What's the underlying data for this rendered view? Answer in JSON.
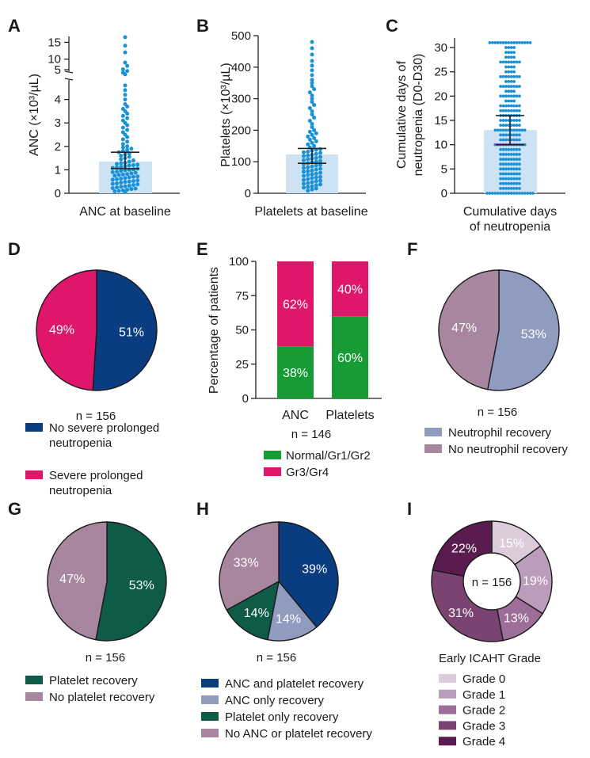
{
  "colors": {
    "dot": "#1b92d6",
    "bar_blue": "#cde3f4",
    "navy": "#0a3d80",
    "pink": "#e0166a",
    "green": "#179c35",
    "gray_blue": "#8f9cc0",
    "mauve": "#a8869f",
    "dark_green": "#0e5c48",
    "grade0": "#dccbdb",
    "grade1": "#bb9cba",
    "grade2": "#9c6e98",
    "grade3": "#7a4371",
    "grade4": "#5a1b4f"
  },
  "chart_data": [
    {
      "panel": "A",
      "type": "scatter",
      "title": "",
      "xlabel": "ANC at baseline",
      "ylabel": "ANC (×10³/µL)",
      "y_ticks": [
        "0",
        "1",
        "2",
        "3",
        "4",
        "5",
        "10",
        "15"
      ],
      "broken_axis": {
        "lower_range": [
          0,
          5
        ],
        "upper_range": [
          5,
          15
        ]
      },
      "bar_median": 1.35,
      "ci": [
        1.05,
        1.75
      ],
      "values": [
        0.05,
        0.08,
        0.1,
        0.12,
        0.15,
        0.18,
        0.2,
        0.22,
        0.25,
        0.28,
        0.3,
        0.32,
        0.35,
        0.38,
        0.4,
        0.42,
        0.45,
        0.48,
        0.5,
        0.52,
        0.55,
        0.58,
        0.6,
        0.62,
        0.65,
        0.68,
        0.7,
        0.72,
        0.75,
        0.78,
        0.8,
        0.82,
        0.85,
        0.88,
        0.9,
        0.92,
        0.95,
        0.98,
        1.0,
        1.02,
        1.05,
        1.08,
        1.1,
        1.12,
        1.15,
        1.18,
        1.2,
        1.22,
        1.25,
        1.28,
        1.3,
        1.35,
        1.4,
        1.45,
        1.5,
        1.55,
        1.6,
        1.65,
        1.7,
        1.75,
        1.8,
        1.85,
        1.9,
        1.95,
        2.0,
        2.1,
        2.2,
        2.3,
        2.4,
        2.5,
        2.6,
        2.7,
        2.8,
        2.9,
        3.0,
        3.1,
        3.2,
        3.3,
        3.4,
        3.5,
        3.6,
        3.7,
        3.8,
        4.0,
        4.2,
        4.4,
        4.6,
        5.5,
        6.0,
        6.5,
        7.0,
        8.0,
        9.0,
        12.0,
        14.0,
        16.5
      ]
    },
    {
      "panel": "B",
      "type": "scatter",
      "title": "",
      "xlabel": "Platelets at baseline",
      "ylabel": "Platelets (×10³/µL)",
      "ylim": [
        0,
        500
      ],
      "y_ticks": [
        "0",
        "100",
        "200",
        "300",
        "400",
        "500"
      ],
      "bar_median": 123,
      "ci": [
        95,
        142
      ],
      "values": [
        8,
        12,
        15,
        18,
        20,
        22,
        25,
        28,
        30,
        32,
        35,
        38,
        40,
        42,
        45,
        48,
        50,
        52,
        55,
        58,
        60,
        62,
        65,
        68,
        70,
        72,
        75,
        78,
        80,
        82,
        85,
        88,
        90,
        92,
        95,
        98,
        100,
        102,
        105,
        108,
        110,
        112,
        115,
        118,
        120,
        122,
        125,
        128,
        130,
        132,
        135,
        138,
        140,
        145,
        150,
        155,
        160,
        165,
        170,
        175,
        180,
        185,
        190,
        195,
        200,
        210,
        220,
        230,
        240,
        250,
        260,
        270,
        280,
        290,
        300,
        310,
        320,
        330,
        340,
        350,
        360,
        375,
        390,
        405,
        420,
        440,
        460,
        480
      ]
    },
    {
      "panel": "C",
      "type": "scatter",
      "title": "",
      "xlabel": "Cumulative days of neutropenia",
      "ylabel": "Cumulative days of neutropenia (D0-D30)",
      "ylim": [
        0,
        30
      ],
      "y_ticks": [
        "0",
        "5",
        "10",
        "15",
        "20",
        "25",
        "30"
      ],
      "bar_median": 13,
      "ci": [
        10,
        16
      ],
      "values": [
        0,
        0,
        0,
        0,
        0,
        0,
        1,
        1,
        2,
        2,
        3,
        3,
        4,
        4,
        5,
        5,
        6,
        6,
        7,
        7,
        8,
        8,
        9,
        9,
        10,
        10,
        10,
        11,
        11,
        12,
        12,
        13,
        13,
        13,
        14,
        14,
        15,
        15,
        16,
        16,
        17,
        17,
        18,
        18,
        19,
        20,
        20,
        21,
        22,
        22,
        23,
        24,
        24,
        25,
        26,
        27,
        27,
        28,
        29,
        30,
        31,
        31,
        31,
        31
      ]
    },
    {
      "panel": "D",
      "type": "pie",
      "n_label": "n = 156",
      "slices": [
        {
          "name": "No severe prolonged neutropenia",
          "value": 51,
          "label": "51%",
          "color": "#0a3d80"
        },
        {
          "name": "Severe prolonged neutropenia",
          "value": 49,
          "label": "49%",
          "color": "#e0166a"
        }
      ],
      "legend": [
        "No severe prolonged neutropenia",
        "Severe prolonged neutropenia"
      ]
    },
    {
      "panel": "E",
      "type": "bar",
      "stacked": true,
      "categories": [
        "ANC",
        "Platelets"
      ],
      "series": [
        {
          "name": "Normal/Gr1/Gr2",
          "values": [
            38,
            60
          ],
          "labels": [
            "38%",
            "60%"
          ],
          "color": "#179c35"
        },
        {
          "name": "Gr3/Gr4",
          "values": [
            62,
            40
          ],
          "labels": [
            "62%",
            "40%"
          ],
          "color": "#e0166a"
        }
      ],
      "ylabel": "Percentage of patients",
      "ylim": [
        0,
        100
      ],
      "y_ticks": [
        "0",
        "25",
        "50",
        "75",
        "100"
      ],
      "n_label": "n = 146",
      "legend": [
        "Normal/Gr1/Gr2",
        "Gr3/Gr4"
      ]
    },
    {
      "panel": "F",
      "type": "pie",
      "n_label": "n = 156",
      "slices": [
        {
          "name": "Neutrophil recovery",
          "value": 53,
          "label": "53%",
          "color": "#8f9cc0"
        },
        {
          "name": "No neutrophil recovery",
          "value": 47,
          "label": "47%",
          "color": "#a8869f"
        }
      ],
      "legend": [
        "Neutrophil recovery",
        "No neutrophil recovery"
      ]
    },
    {
      "panel": "G",
      "type": "pie",
      "n_label": "n = 156",
      "slices": [
        {
          "name": "Platelet recovery",
          "value": 53,
          "label": "53%",
          "color": "#0e5c48"
        },
        {
          "name": "No platelet recovery",
          "value": 47,
          "label": "47%",
          "color": "#a8869f"
        }
      ],
      "legend": [
        "Platelet recovery",
        "No platelet recovery"
      ]
    },
    {
      "panel": "H",
      "type": "pie",
      "n_label": "n = 156",
      "slices": [
        {
          "name": "ANC and platelet recovery",
          "value": 39,
          "label": "39%",
          "color": "#0a3d80"
        },
        {
          "name": "ANC only recovery",
          "value": 14,
          "label": "14%",
          "color": "#8f9cc0"
        },
        {
          "name": "Platelet only recovery",
          "value": 14,
          "label": "14%",
          "color": "#0e5c48"
        },
        {
          "name": "No ANC or platelet recovery",
          "value": 33,
          "label": "33%",
          "color": "#a8869f"
        }
      ],
      "legend": [
        "ANC and platelet recovery",
        "ANC only recovery",
        "Platelet only recovery",
        "No ANC or platelet recovery"
      ]
    },
    {
      "panel": "I",
      "type": "pie",
      "donut": true,
      "center_label": "n = 156",
      "legend_title": "Early ICAHT Grade",
      "slices": [
        {
          "name": "Grade 0",
          "value": 15,
          "label": "15%",
          "color": "#dccbdb"
        },
        {
          "name": "Grade 1",
          "value": 19,
          "label": "19%",
          "color": "#bb9cba"
        },
        {
          "name": "Grade 2",
          "value": 13,
          "label": "13%",
          "color": "#9c6e98"
        },
        {
          "name": "Grade 3",
          "value": 31,
          "label": "31%",
          "color": "#7a4371"
        },
        {
          "name": "Grade 4",
          "value": 22,
          "label": "22%",
          "color": "#5a1b4f"
        }
      ],
      "legend": [
        "Grade 0",
        "Grade 1",
        "Grade 2",
        "Grade 3",
        "Grade 4"
      ]
    }
  ],
  "panel_letters": [
    "A",
    "B",
    "C",
    "D",
    "E",
    "F",
    "G",
    "H",
    "I"
  ]
}
